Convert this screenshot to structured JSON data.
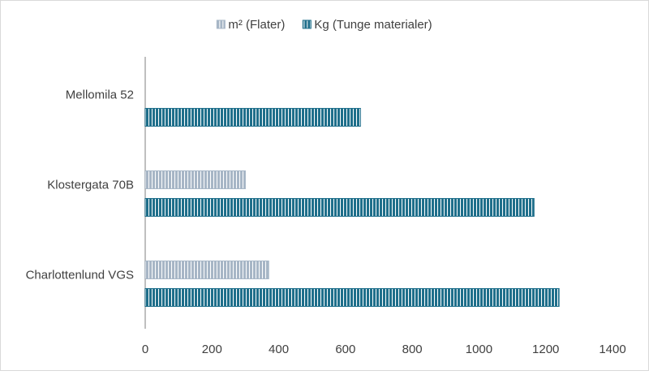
{
  "chart_data": {
    "type": "bar",
    "orientation": "horizontal",
    "categories": [
      "Mellomila 52",
      "Klostergata 70B",
      "Charlottenlund VGS"
    ],
    "series": [
      {
        "name": "m² (Flater)",
        "color": "#a7b6c6",
        "values": [
          null,
          300,
          370
        ]
      },
      {
        "name": "Kg (Tunge materialer)",
        "color": "#1f6f8b",
        "values": [
          645,
          1165,
          1240
        ]
      }
    ],
    "xlim": [
      0,
      1400
    ],
    "xticks": [
      0,
      200,
      400,
      600,
      800,
      1000,
      1200,
      1400
    ],
    "legend": "top",
    "grid": false
  }
}
